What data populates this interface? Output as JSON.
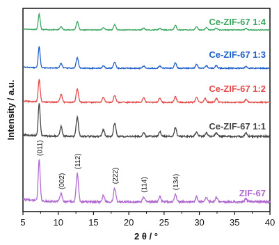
{
  "chart_data": {
    "type": "line",
    "xlabel": "2 θ / °",
    "ylabel": "Intensity / a.u.",
    "xlim": [
      5,
      40
    ],
    "x_ticks": [
      5,
      10,
      15,
      20,
      25,
      30,
      35,
      40
    ],
    "y_ticks_shown": false,
    "legend": "labels on each trace (stacked, offset)",
    "peaks": [
      {
        "two_theta": 7.3,
        "label": "(011)"
      },
      {
        "two_theta": 10.4,
        "label": "(002)"
      },
      {
        "two_theta": 12.7,
        "label": "(112)"
      },
      {
        "two_theta": 18.0,
        "label": "(222)"
      },
      {
        "two_theta": 22.1,
        "label": "(114)"
      },
      {
        "two_theta": 26.6,
        "label": "(134)"
      }
    ],
    "series": [
      {
        "name": "Ce-ZIF-67  1:4",
        "color": "#3aa65f",
        "peaks": [
          [
            7.3,
            1.0
          ],
          [
            10.4,
            0.2
          ],
          [
            12.7,
            0.55
          ],
          [
            16.4,
            0.15
          ],
          [
            18.0,
            0.35
          ],
          [
            22.1,
            0.12
          ],
          [
            24.4,
            0.1
          ],
          [
            26.6,
            0.3
          ],
          [
            29.6,
            0.22
          ],
          [
            31.0,
            0.15
          ],
          [
            32.4,
            0.12
          ],
          [
            36.6,
            0.1
          ]
        ]
      },
      {
        "name": "Ce-ZIF-67  1:3",
        "color": "#1f5fc9",
        "peaks": [
          [
            7.3,
            1.0
          ],
          [
            10.4,
            0.22
          ],
          [
            12.7,
            0.5
          ],
          [
            16.4,
            0.12
          ],
          [
            18.0,
            0.3
          ],
          [
            22.1,
            0.1
          ],
          [
            24.4,
            0.1
          ],
          [
            26.6,
            0.25
          ],
          [
            29.6,
            0.18
          ],
          [
            31.0,
            0.12
          ],
          [
            32.4,
            0.12
          ],
          [
            36.6,
            0.08
          ]
        ]
      },
      {
        "name": "Ce-ZIF-67  1:2",
        "color": "#e34a4a",
        "peaks": [
          [
            7.3,
            1.0
          ],
          [
            10.4,
            0.35
          ],
          [
            12.7,
            0.62
          ],
          [
            16.4,
            0.22
          ],
          [
            18.0,
            0.32
          ],
          [
            22.1,
            0.2
          ],
          [
            24.4,
            0.2
          ],
          [
            26.6,
            0.25
          ],
          [
            29.6,
            0.22
          ],
          [
            30.8,
            0.18
          ],
          [
            32.4,
            0.18
          ],
          [
            36.6,
            0.12
          ]
        ]
      },
      {
        "name": "Ce-ZIF-67  1:1",
        "color": "#444444",
        "peaks": [
          [
            7.3,
            1.0
          ],
          [
            10.4,
            0.3
          ],
          [
            12.7,
            0.6
          ],
          [
            16.4,
            0.2
          ],
          [
            18.0,
            0.42
          ],
          [
            22.1,
            0.12
          ],
          [
            24.4,
            0.15
          ],
          [
            26.6,
            0.28
          ],
          [
            29.6,
            0.15
          ],
          [
            31.0,
            0.12
          ],
          [
            32.4,
            0.12
          ],
          [
            36.6,
            0.12
          ]
        ]
      },
      {
        "name": "ZIF-67",
        "color": "#b06ad0",
        "peaks": [
          [
            7.3,
            1.0
          ],
          [
            10.4,
            0.2
          ],
          [
            12.7,
            0.68
          ],
          [
            16.4,
            0.15
          ],
          [
            18.0,
            0.33
          ],
          [
            22.1,
            0.12
          ],
          [
            24.4,
            0.12
          ],
          [
            26.6,
            0.18
          ],
          [
            29.6,
            0.12
          ],
          [
            31.0,
            0.1
          ],
          [
            32.4,
            0.1
          ],
          [
            36.6,
            0.08
          ]
        ]
      }
    ]
  }
}
